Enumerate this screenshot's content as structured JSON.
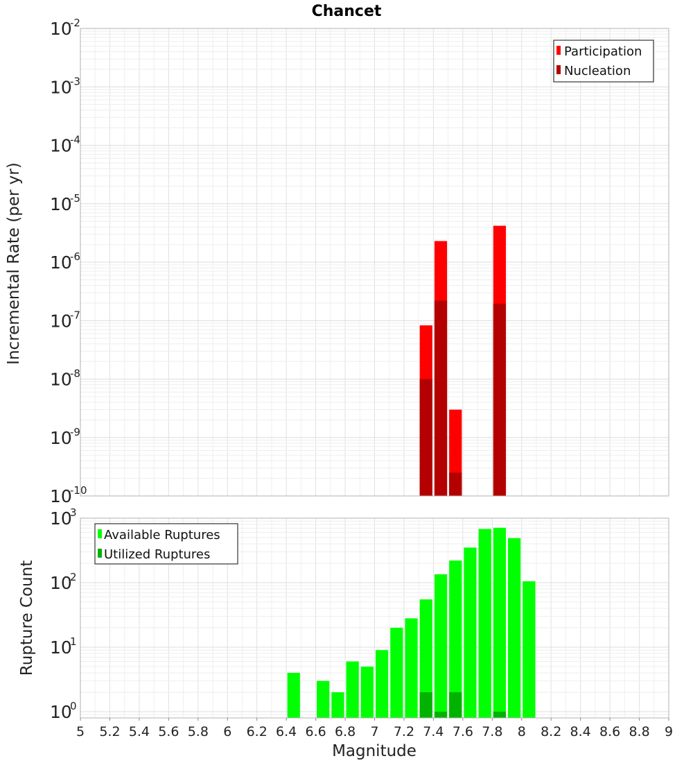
{
  "chart_data": [
    {
      "type": "bar",
      "title": "Chancet",
      "ylabel": "Incremental Rate (per yr)",
      "xlabel": "",
      "yscale": "log",
      "ylim": [
        1e-10,
        0.01
      ],
      "xlim": [
        5,
        9
      ],
      "bin_width": 0.1,
      "grid": true,
      "legend_position": "top-right",
      "y_tick_labels": [
        {
          "base": "10",
          "exp": "-2",
          "value": 0.01
        },
        {
          "base": "10",
          "exp": "-3",
          "value": 0.001
        },
        {
          "base": "10",
          "exp": "-4",
          "value": 0.0001
        },
        {
          "base": "10",
          "exp": "-5",
          "value": 1e-05
        },
        {
          "base": "10",
          "exp": "-6",
          "value": 1e-06
        },
        {
          "base": "10",
          "exp": "-7",
          "value": 1e-07
        },
        {
          "base": "10",
          "exp": "-8",
          "value": 1e-08
        },
        {
          "base": "10",
          "exp": "-9",
          "value": 1e-09
        },
        {
          "base": "10",
          "exp": "-10",
          "value": 1e-10
        }
      ],
      "series": [
        {
          "name": "Participation",
          "color": "#ff0000",
          "points": [
            [
              7.35,
              8.3e-08
            ],
            [
              7.45,
              2.3e-06
            ],
            [
              7.55,
              3e-09
            ],
            [
              7.85,
              4.2e-06
            ]
          ]
        },
        {
          "name": "Nucleation",
          "color": "#b30000",
          "points": [
            [
              7.35,
              1e-08
            ],
            [
              7.45,
              2.2e-07
            ],
            [
              7.55,
              2.5e-10
            ],
            [
              7.85,
              1.95e-07
            ]
          ]
        }
      ]
    },
    {
      "type": "bar",
      "xlabel": "Magnitude",
      "ylabel": "Rupture Count",
      "yscale": "log",
      "ylim": [
        0.8,
        1000
      ],
      "xlim": [
        5,
        9
      ],
      "bin_width": 0.1,
      "grid": true,
      "legend_position": "top-left",
      "y_tick_labels": [
        {
          "base": "10",
          "exp": "3",
          "value": 1000
        },
        {
          "base": "10",
          "exp": "2",
          "value": 100
        },
        {
          "base": "10",
          "exp": "1",
          "value": 10
        },
        {
          "base": "10",
          "exp": "0",
          "value": 1
        }
      ],
      "x_tick_labels": [
        "5",
        "5.2",
        "5.4",
        "5.6",
        "5.8",
        "6",
        "6.2",
        "6.4",
        "6.6",
        "6.8",
        "7",
        "7.2",
        "7.4",
        "7.6",
        "7.8",
        "8",
        "8.2",
        "8.4",
        "8.6",
        "8.8",
        "9"
      ],
      "series": [
        {
          "name": "Available Ruptures",
          "color": "#00ff00",
          "points": [
            [
              6.45,
              4
            ],
            [
              6.65,
              3
            ],
            [
              6.75,
              2
            ],
            [
              6.85,
              6
            ],
            [
              6.95,
              5
            ],
            [
              7.05,
              9
            ],
            [
              7.15,
              20
            ],
            [
              7.25,
              28
            ],
            [
              7.35,
              55
            ],
            [
              7.45,
              135
            ],
            [
              7.55,
              220
            ],
            [
              7.65,
              350
            ],
            [
              7.75,
              680
            ],
            [
              7.85,
              710
            ],
            [
              7.95,
              490
            ],
            [
              8.05,
              105
            ]
          ]
        },
        {
          "name": "Utilized Ruptures",
          "color": "#00b300",
          "points": [
            [
              7.35,
              2
            ],
            [
              7.45,
              1
            ],
            [
              7.55,
              2
            ],
            [
              7.85,
              1
            ]
          ]
        }
      ]
    }
  ]
}
